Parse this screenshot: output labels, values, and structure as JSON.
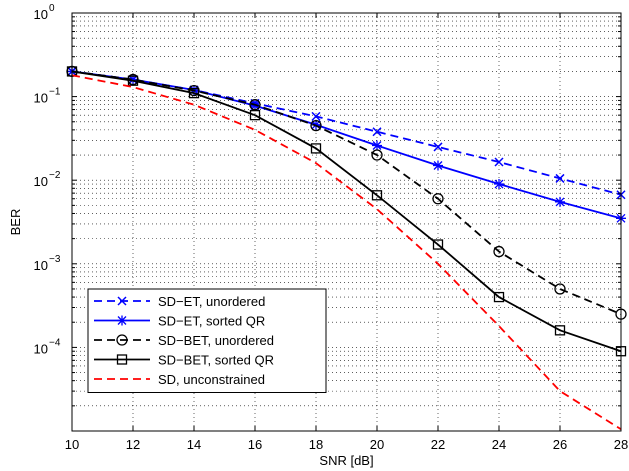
{
  "chart_data": {
    "type": "line",
    "title": "",
    "xlabel": "SNR [dB]",
    "ylabel": "BER",
    "xlim": [
      10,
      28
    ],
    "ylim": [
      1e-05,
      1
    ],
    "yscale": "log",
    "grid": true,
    "legend_position": "bottom-left",
    "x_ticks": [
      10,
      12,
      14,
      16,
      18,
      20,
      22,
      24,
      26,
      28
    ],
    "x_tick_labels": [
      "10",
      "12",
      "14",
      "16",
      "18",
      "20",
      "22",
      "24",
      "26",
      "28"
    ],
    "y_ticks": [
      {
        "value": 1,
        "exp": "0"
      },
      {
        "value": 0.1,
        "exp": "−1"
      },
      {
        "value": 0.01,
        "exp": "−2"
      },
      {
        "value": 0.001,
        "exp": "−3"
      },
      {
        "value": 0.0001,
        "exp": "−4"
      }
    ],
    "y_tick_base": "10",
    "series": [
      {
        "name": "SD−ET, unordered",
        "color": "#0000ff",
        "dash": "dashed",
        "marker": "x",
        "x": [
          10,
          12,
          14,
          16,
          18,
          20,
          22,
          24,
          26,
          28
        ],
        "y": [
          0.2,
          0.16,
          0.12,
          0.083,
          0.058,
          0.038,
          0.025,
          0.0165,
          0.0105,
          0.0067
        ]
      },
      {
        "name": "SD−ET, sorted QR",
        "color": "#0000ff",
        "dash": "solid",
        "marker": "asterisk",
        "x": [
          10,
          12,
          14,
          16,
          18,
          20,
          22,
          24,
          26,
          28
        ],
        "y": [
          0.2,
          0.16,
          0.12,
          0.078,
          0.046,
          0.026,
          0.015,
          0.009,
          0.0055,
          0.0035
        ]
      },
      {
        "name": "SD−BET, unordered",
        "color": "#000000",
        "dash": "dashed",
        "marker": "circle",
        "x": [
          10,
          12,
          14,
          16,
          18,
          20,
          22,
          24,
          26,
          28
        ],
        "y": [
          0.2,
          0.16,
          0.118,
          0.08,
          0.045,
          0.02,
          0.006,
          0.0014,
          0.0005,
          0.00025
        ]
      },
      {
        "name": "SD−BET, sorted QR",
        "color": "#000000",
        "dash": "solid",
        "marker": "square",
        "x": [
          10,
          12,
          14,
          16,
          18,
          20,
          22,
          24,
          26,
          28
        ],
        "y": [
          0.2,
          0.155,
          0.11,
          0.06,
          0.024,
          0.0066,
          0.0017,
          0.0004,
          0.00016,
          9e-05
        ]
      },
      {
        "name": "SD, unconstrained",
        "color": "#ff0000",
        "dash": "dashed",
        "marker": "none",
        "x": [
          10,
          12,
          14,
          16,
          18,
          20,
          22,
          24,
          26,
          28
        ],
        "y": [
          0.18,
          0.13,
          0.08,
          0.04,
          0.016,
          0.0045,
          0.001,
          0.00018,
          3e-05,
          1.05e-05
        ]
      }
    ]
  }
}
